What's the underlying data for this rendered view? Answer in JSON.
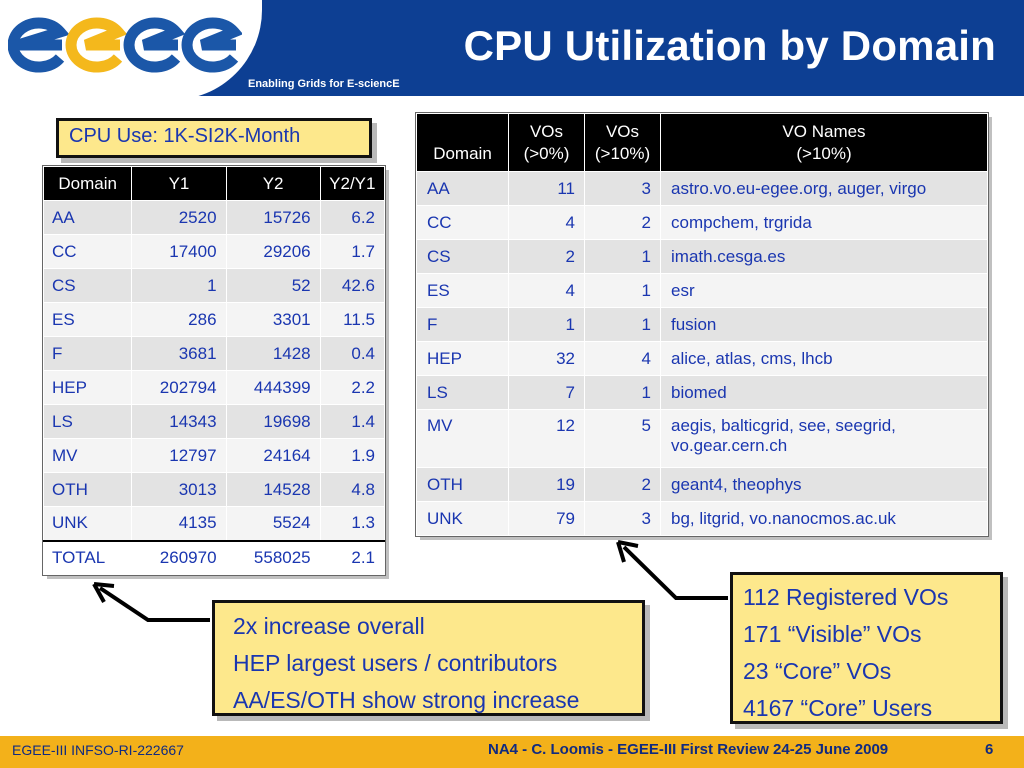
{
  "header": {
    "logo_text": "egee",
    "title": "CPU Utilization by Domain",
    "tagline": "Enabling Grids for E-sciencE",
    "colors": {
      "header_bg": "#0d3f93",
      "logo_blue": "#1b57a8",
      "logo_yellow": "#f4b81c"
    }
  },
  "unit_label": "CPU Use: 1K-SI2K-Month",
  "usage_table": {
    "headers": [
      "Domain",
      "Y1",
      "Y2",
      "Y2/Y1"
    ],
    "rows": [
      [
        "AA",
        "2520",
        "15726",
        "6.2"
      ],
      [
        "CC",
        "17400",
        "29206",
        "1.7"
      ],
      [
        "CS",
        "1",
        "52",
        "42.6"
      ],
      [
        "ES",
        "286",
        "3301",
        "11.5"
      ],
      [
        "F",
        "3681",
        "1428",
        "0.4"
      ],
      [
        "HEP",
        "202794",
        "444399",
        "2.2"
      ],
      [
        "LS",
        "14343",
        "19698",
        "1.4"
      ],
      [
        "MV",
        "12797",
        "24164",
        "1.9"
      ],
      [
        "OTH",
        "3013",
        "14528",
        "4.8"
      ],
      [
        "UNK",
        "4135",
        "5524",
        "1.3"
      ]
    ],
    "total": [
      "TOTAL",
      "260970",
      "558025",
      "2.1"
    ]
  },
  "vo_table": {
    "headers": [
      {
        "line1": "",
        "line2": "Domain"
      },
      {
        "line1": "VOs",
        "line2": "(>0%)"
      },
      {
        "line1": "VOs",
        "line2": "(>10%)"
      },
      {
        "line1": "VO Names",
        "line2": "(>10%)"
      }
    ],
    "rows": [
      {
        "domain": "AA",
        "vos0": "11",
        "vos10": "3",
        "names": "astro.vo.eu-egee.org, auger, virgo"
      },
      {
        "domain": "CC",
        "vos0": "4",
        "vos10": "2",
        "names": "compchem, trgrida"
      },
      {
        "domain": "CS",
        "vos0": "2",
        "vos10": "1",
        "names": "imath.cesga.es"
      },
      {
        "domain": "ES",
        "vos0": "4",
        "vos10": "1",
        "names": "esr"
      },
      {
        "domain": "F",
        "vos0": "1",
        "vos10": "1",
        "names": "fusion"
      },
      {
        "domain": "HEP",
        "vos0": "32",
        "vos10": "4",
        "names": "alice, atlas, cms, lhcb"
      },
      {
        "domain": "LS",
        "vos0": "7",
        "vos10": "1",
        "names": "biomed"
      },
      {
        "domain": "MV",
        "vos0": "12",
        "vos10": "5",
        "names": "aegis, balticgrid, see, seegrid,",
        "names_line2": "vo.gear.cern.ch"
      },
      {
        "domain": "OTH",
        "vos0": "19",
        "vos10": "2",
        "names": "geant4, theophys"
      },
      {
        "domain": "UNK",
        "vos0": "79",
        "vos10": "3",
        "names": "bg, litgrid, vo.nanocmos.ac.uk"
      }
    ]
  },
  "callout_left": [
    "2x increase overall",
    "HEP largest users / contributors",
    "AA/ES/OTH show strong increase"
  ],
  "callout_right": [
    "112 Registered VOs",
    "171 “Visible” VOs",
    "23 “Core” VOs",
    "4167 “Core” Users"
  ],
  "footer": {
    "left": "EGEE-III INFSO-RI-222667",
    "center": "NA4 - C. Loomis - EGEE-III First Review 24-25 June 2009",
    "page": "6",
    "bg_color": "#f3b11a"
  }
}
